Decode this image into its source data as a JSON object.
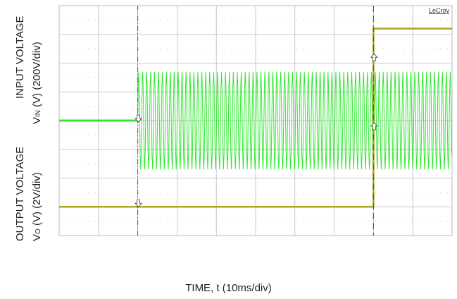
{
  "chart_data": {
    "type": "line",
    "brand": "LeCroy",
    "xlabel": "TIME, t (10ms/div)",
    "ylabel_input": {
      "line1": "INPUT VOLTAGE",
      "v": "V",
      "sub": "IN",
      "unit": " (V) (200V/div)"
    },
    "ylabel_output": {
      "line1": "OUTPUT VOLTAGE",
      "v": "V",
      "sub": "O",
      "unit": " (V) (2V/div)"
    },
    "grid": {
      "h_divisions": 10,
      "v_divisions": 8
    },
    "series": [
      {
        "x": [
          0,
          20,
          20,
          100
        ],
        "envelope_div": [
          0,
          0,
          3.4,
          3.4
        ],
        "center_div": 0
      },
      {
        "x": [
          0,
          80,
          80,
          100
        ],
        "level_div": [
          0,
          0,
          6.2,
          6.2
        ]
      }
    ],
    "markers": [
      {
        "x": 20
      },
      {
        "x": 80
      }
    ],
    "colors": {
      "input": "#33e833",
      "output": "#a8a821",
      "grid_solid": "#b9b9b9",
      "grid_dot": "#c8c8c8",
      "cursor": "#555555"
    }
  }
}
